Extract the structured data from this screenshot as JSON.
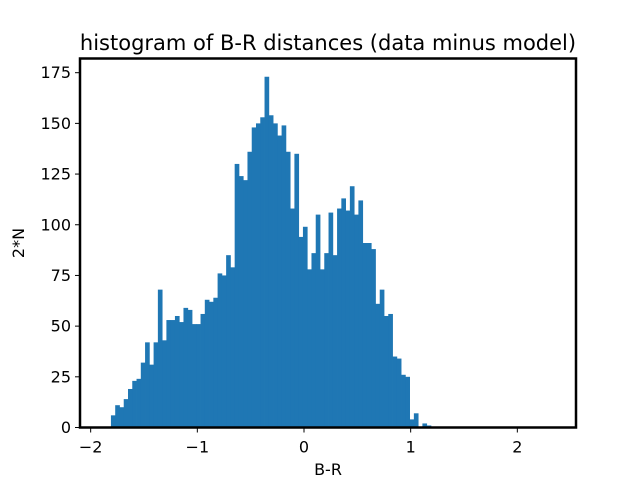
{
  "chart_data": {
    "type": "histogram",
    "title": "histogram of B-R distances (data minus model)",
    "xlabel": "B-R",
    "ylabel": "2*N",
    "xlim": [
      -2.1,
      2.55
    ],
    "ylim": [
      0,
      182
    ],
    "xticks": [
      -2,
      -1,
      0,
      1,
      2
    ],
    "xtick_labels": [
      "−2",
      "−1",
      "0",
      "1",
      "2"
    ],
    "yticks": [
      0,
      25,
      50,
      75,
      100,
      125,
      150,
      175
    ],
    "ytick_labels": [
      "0",
      "25",
      "50",
      "75",
      "100",
      "125",
      "150",
      "175"
    ],
    "grid": false,
    "bar_color": "#1f77b4",
    "bin_start": -1.81,
    "bin_width": 0.04,
    "counts": [
      6,
      11,
      10,
      14,
      19,
      23,
      24,
      32,
      42,
      31,
      42,
      68,
      43,
      53,
      53,
      55,
      52,
      59,
      58,
      51,
      51,
      56,
      63,
      62,
      64,
      76,
      75,
      85,
      79,
      130,
      124,
      122,
      136,
      148,
      150,
      153,
      173,
      154,
      150,
      144,
      149,
      136,
      108,
      135,
      94,
      99,
      78,
      86,
      105,
      78,
      86,
      106,
      85,
      108,
      113,
      107,
      119,
      105,
      112,
      91,
      91,
      88,
      61,
      68,
      55,
      56,
      35,
      34,
      26,
      25,
      4,
      7,
      0,
      2,
      1
    ]
  }
}
